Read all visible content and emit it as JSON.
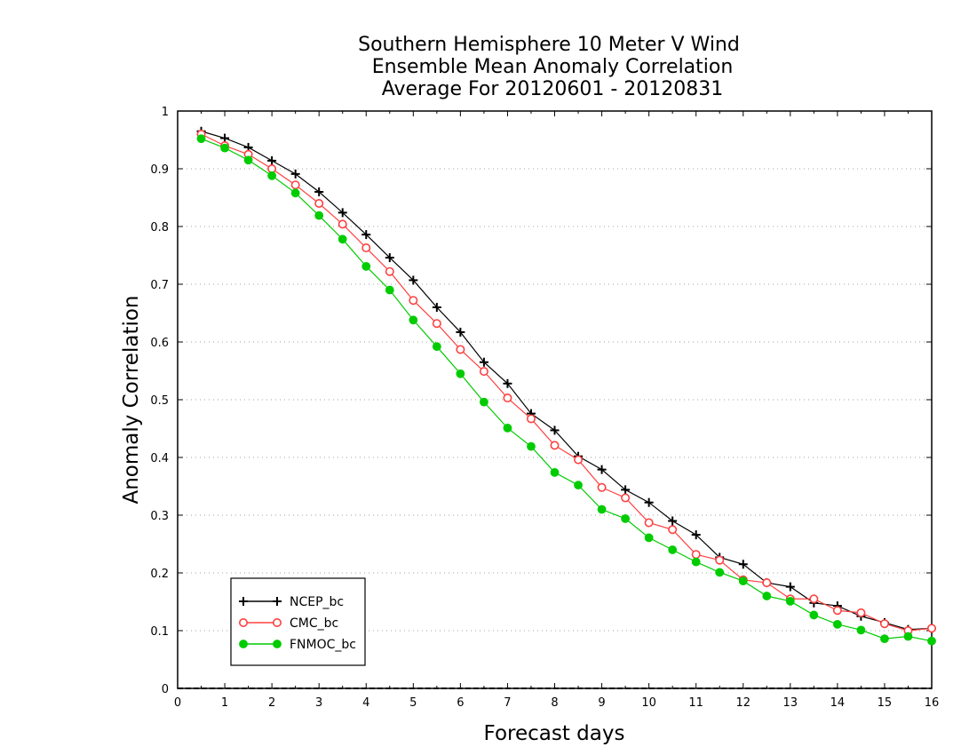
{
  "chart_data": {
    "type": "line",
    "title": [
      "Southern Hemisphere 10 Meter V Wind",
      "Ensemble Mean Anomaly Correlation",
      "Average For 20120601 - 20120831"
    ],
    "xlabel": "Forecast days",
    "ylabel": "Anomaly Correlation",
    "xlim": [
      0,
      16
    ],
    "ylim": [
      0,
      1
    ],
    "x_ticks": [
      "0",
      "1",
      "2",
      "3",
      "4",
      "5",
      "6",
      "7",
      "8",
      "9",
      "10",
      "11",
      "12",
      "13",
      "14",
      "15",
      "16"
    ],
    "y_ticks": [
      "0",
      "0.1",
      "0.2",
      "0.3",
      "0.4",
      "0.5",
      "0.6",
      "0.7",
      "0.8",
      "0.9",
      "1"
    ],
    "grid": "horizontal dotted",
    "legend_position": "bottom-left",
    "x": [
      0.5,
      1,
      1.5,
      2,
      2.5,
      3,
      3.5,
      4,
      4.5,
      5,
      5.5,
      6,
      6.5,
      7,
      7.5,
      8,
      8.5,
      9,
      9.5,
      10,
      10.5,
      11,
      11.5,
      12,
      12.5,
      13,
      13.5,
      14,
      14.5,
      15,
      15.5,
      16
    ],
    "series": [
      {
        "name": "NCEP_bc",
        "color": "#000000",
        "marker": "plus",
        "values": [
          0.965,
          0.953,
          0.937,
          0.914,
          0.891,
          0.86,
          0.824,
          0.786,
          0.746,
          0.707,
          0.66,
          0.617,
          0.565,
          0.528,
          0.476,
          0.447,
          0.402,
          0.379,
          0.344,
          0.322,
          0.29,
          0.266,
          0.227,
          0.215,
          0.183,
          0.176,
          0.148,
          0.143,
          0.125,
          0.114,
          0.102,
          0.104
        ]
      },
      {
        "name": "CMC_bc",
        "color": "#ff4040",
        "marker": "open-circle",
        "values": [
          0.96,
          0.94,
          0.925,
          0.9,
          0.872,
          0.84,
          0.804,
          0.763,
          0.722,
          0.672,
          0.632,
          0.587,
          0.549,
          0.503,
          0.467,
          0.421,
          0.396,
          0.348,
          0.33,
          0.287,
          0.275,
          0.232,
          0.222,
          0.188,
          0.183,
          0.155,
          0.155,
          0.135,
          0.131,
          0.112,
          0.1,
          0.104
        ]
      },
      {
        "name": "FNMOC_bc",
        "color": "#00cc00",
        "marker": "filled-circle",
        "values": [
          0.952,
          0.936,
          0.915,
          0.888,
          0.858,
          0.819,
          0.778,
          0.731,
          0.69,
          0.638,
          0.592,
          0.545,
          0.496,
          0.451,
          0.419,
          0.374,
          0.352,
          0.31,
          0.294,
          0.261,
          0.24,
          0.219,
          0.201,
          0.186,
          0.16,
          0.151,
          0.127,
          0.111,
          0.101,
          0.086,
          0.09,
          0.082
        ]
      }
    ]
  }
}
